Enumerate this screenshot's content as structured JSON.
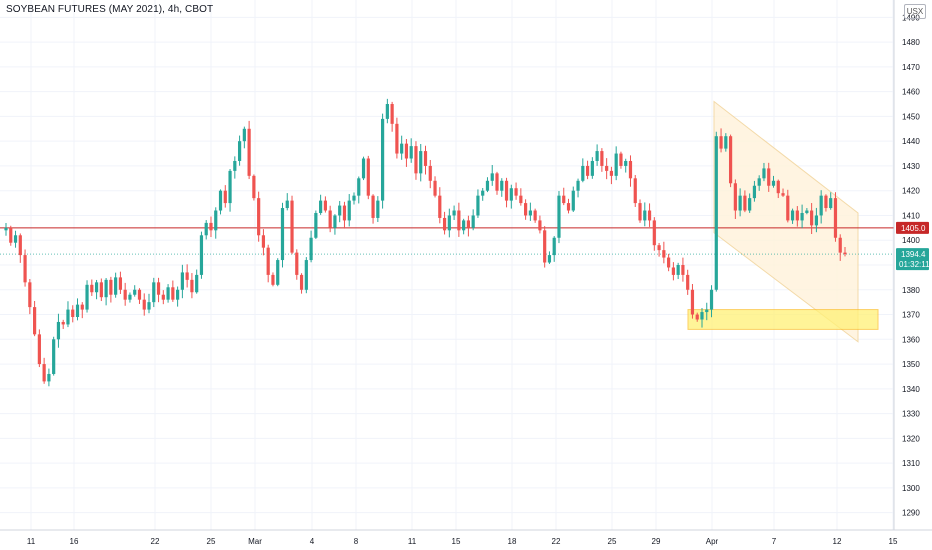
{
  "header": {
    "title": "SOYBEAN FUTURES (MAY 2021), 4h, CBOT",
    "currency": "USX"
  },
  "price_tags": {
    "level_line": "1405.0",
    "last_price": "1394.4",
    "countdown": "01:32:11"
  },
  "colors": {
    "up": "#26a69a",
    "down": "#ef5350",
    "grid": "#f0f3fa",
    "level_line": "#c62828",
    "last_line": "#26a69a",
    "channel_fill": "#fff3dc",
    "channel_edge": "#f2d49b",
    "zone_fill": "#fff176",
    "zone_edge": "#fbc02d"
  },
  "chart_data": {
    "type": "candlestick",
    "title": "SOYBEAN FUTURES (MAY 2021), 4h, CBOT",
    "ylim": [
      1283,
      1497
    ],
    "y_ticks": [
      1290,
      1300,
      1310,
      1320,
      1330,
      1340,
      1350,
      1360,
      1370,
      1380,
      1390,
      1400,
      1410,
      1420,
      1430,
      1440,
      1450,
      1460,
      1470,
      1480,
      1490
    ],
    "x_ticks": [
      "11",
      "16",
      "22",
      "25",
      "Mar",
      "4",
      "8",
      "11",
      "15",
      "18",
      "22",
      "25",
      "29",
      "Apr",
      "7",
      "12",
      "15"
    ],
    "horizontal_line": 1405.0,
    "last_price": 1394.4,
    "grid": true,
    "closes": [
      1405,
      1399,
      1402,
      1394,
      1383,
      1373,
      1362,
      1350,
      1343,
      1346,
      1360,
      1367,
      1366,
      1372,
      1369,
      1374,
      1372,
      1382,
      1379,
      1383,
      1377,
      1384,
      1378,
      1385,
      1380,
      1376,
      1378,
      1380,
      1376,
      1372,
      1375,
      1383,
      1378,
      1376,
      1381,
      1376,
      1380,
      1387,
      1384,
      1379,
      1386,
      1402,
      1407,
      1404,
      1412,
      1420,
      1415,
      1428,
      1432,
      1440,
      1445,
      1426,
      1417,
      1402,
      1397,
      1386,
      1382,
      1392,
      1413,
      1416,
      1395,
      1386,
      1380,
      1392,
      1401,
      1411,
      1416,
      1412,
      1405,
      1410,
      1414,
      1408,
      1416,
      1418,
      1425,
      1433,
      1418,
      1409,
      1416,
      1449,
      1455,
      1447,
      1435,
      1439,
      1433,
      1438,
      1427,
      1436,
      1430,
      1424,
      1418,
      1409,
      1404,
      1410,
      1412,
      1404,
      1408,
      1405,
      1410,
      1418,
      1420,
      1424,
      1427,
      1420,
      1424,
      1416,
      1421,
      1418,
      1415,
      1410,
      1412,
      1408,
      1404,
      1391,
      1394,
      1401,
      1418,
      1415,
      1412,
      1420,
      1424,
      1430,
      1426,
      1432,
      1436,
      1430,
      1428,
      1426,
      1435,
      1430,
      1432,
      1425,
      1415,
      1408,
      1412,
      1408,
      1398,
      1396,
      1393,
      1389,
      1386,
      1390,
      1386,
      1380,
      1370,
      1368,
      1371,
      1372,
      1380,
      1442,
      1437,
      1442,
      1423,
      1412,
      1418,
      1412,
      1417,
      1422,
      1425,
      1429,
      1422,
      1424,
      1419,
      1418,
      1408,
      1412,
      1408,
      1411,
      1412,
      1406,
      1410,
      1418,
      1413,
      1417,
      1401,
      1395,
      1394.4
    ]
  }
}
